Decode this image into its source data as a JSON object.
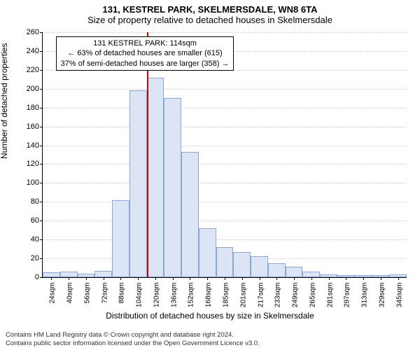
{
  "title_line1": "131, KESTREL PARK, SKELMERSDALE, WN8 6TA",
  "title_line2": "Size of property relative to detached houses in Skelmersdale",
  "y_axis_label": "Number of detached properties",
  "x_axis_label": "Distribution of detached houses by size in Skelmersdale",
  "footer_line1": "Contains HM Land Registry data © Crown copyright and database right 2024.",
  "footer_line2": "Contains public sector information licensed under the Open Government Licence v3.0.",
  "chart": {
    "type": "histogram",
    "background_color": "#ffffff",
    "grid_color": "#cccccc",
    "bar_fill": "#dbe5f6",
    "bar_border": "#8ca6d9",
    "marker_color": "#cc0000",
    "ylim": [
      0,
      260
    ],
    "ytick_step": 20,
    "x_categories": [
      "24sqm",
      "40sqm",
      "56sqm",
      "72sqm",
      "88sqm",
      "104sqm",
      "120sqm",
      "136sqm",
      "152sqm",
      "168sqm",
      "185sqm",
      "201sqm",
      "217sqm",
      "233sqm",
      "249sqm",
      "265sqm",
      "281sqm",
      "297sqm",
      "313sqm",
      "329sqm",
      "345sqm"
    ],
    "values": [
      5,
      6,
      4,
      7,
      82,
      198,
      212,
      190,
      133,
      52,
      32,
      27,
      22,
      15,
      11,
      6,
      3,
      2,
      2,
      2,
      3
    ],
    "marker_index_between": 6,
    "annotation": {
      "line1": "131 KESTREL PARK: 114sqm",
      "line2": "← 63% of detached houses are smaller (615)",
      "line3": "37% of semi-detached houses are larger (358) →"
    },
    "label_fontsize": 12,
    "tick_fontsize": 11
  }
}
